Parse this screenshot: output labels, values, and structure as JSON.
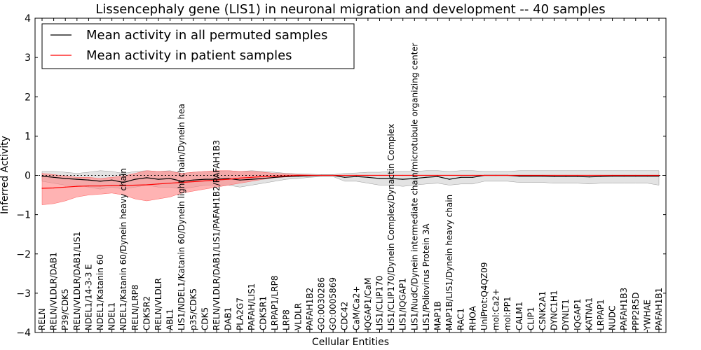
{
  "chart_data": {
    "type": "line",
    "title": "Lissencephaly gene (LIS1) in neuronal migration and development -- 40 samples",
    "xlabel": "Cellular Entities",
    "ylabel": "Inferred Activity",
    "ylim": [
      -4,
      4
    ],
    "yticks": [
      -4,
      -3,
      -2,
      -1,
      0,
      1,
      2,
      3,
      4
    ],
    "ytick_labels": [
      "−4",
      "−3",
      "−2",
      "−1",
      "0",
      "1",
      "2",
      "3",
      "4"
    ],
    "legend_position": "top-left",
    "categories": [
      "RELN",
      "RELN/VLDLR/DAB1",
      "P39/CDK5",
      "RELN/VLDLR/DAB1/LIS1",
      "NDEL1/14-3-3 E",
      "NDEL1/Katanin 60",
      "NDEL1",
      "NDEL1/Katanin 60/Dynein heavy chain",
      "RELN/LRP8",
      "CDK5R2",
      "RELN/VLDLR",
      "ABL1",
      "LIS1/NDEL1/Katanin 60/Dynein light chain/Dynein hea",
      "p35/CDK5",
      "CDK5",
      "RELN/VLDLR/DAB1/LIS1/PAFAH1B2/PAFAH1B3",
      "DAB1",
      "PLA2G7",
      "PAFAH/LIS1",
      "CDK5R1",
      "LRPAP1/LRP8",
      "LRP8",
      "VLDLR",
      "PAFAH1B2",
      "GO:0030286",
      "GO:0005869",
      "CDC42",
      "CaM/Ca2+",
      "IQGAP1/CaM",
      "LIS1/CLIP170",
      "LIS1/CLIP170/Dynein Complex/Dynactin Complex",
      "LIS1/IQGAP1",
      "LIS1/NudC/Dynein intermediate chain/microtubule organizing center",
      "LIS1/Poliovirus Protein 3A",
      "MAP1B",
      "MAP1B/LIS1/Dynein heavy chain",
      "RAC1",
      "RHOA",
      "UniProt:Q4QZ09",
      "mol:Ca2+",
      "mol:PP1",
      "CALM1",
      "CLIP1",
      "CSNK2A1",
      "DYNC1H1",
      "DYNLT1",
      "IQGAP1",
      "KATNA1",
      "LRPAP1",
      "NUDC",
      "PAFAH1B3",
      "PPP2R5D",
      "YWHAE",
      "PAFAH1B1"
    ],
    "series": [
      {
        "name": "Mean activity in all permuted samples",
        "color": "#000000",
        "band_color": "#c8c8c8",
        "values": [
          -0.02,
          -0.05,
          -0.08,
          -0.1,
          -0.12,
          -0.15,
          -0.12,
          -0.18,
          -0.1,
          -0.06,
          -0.1,
          -0.08,
          -0.15,
          -0.12,
          -0.1,
          -0.1,
          -0.08,
          -0.12,
          -0.1,
          -0.08,
          -0.05,
          -0.03,
          -0.02,
          -0.01,
          0.0,
          0.0,
          -0.05,
          -0.03,
          -0.05,
          -0.08,
          -0.08,
          -0.1,
          -0.08,
          -0.05,
          -0.03,
          -0.1,
          -0.05,
          -0.05,
          0.0,
          0.0,
          0.0,
          -0.02,
          -0.02,
          -0.02,
          -0.03,
          -0.03,
          -0.03,
          -0.04,
          -0.03,
          -0.02,
          -0.02,
          -0.02,
          -0.02,
          -0.02
        ],
        "upper": [
          0.1,
          0.1,
          0.08,
          0.05,
          0.08,
          0.12,
          0.1,
          0.05,
          0.1,
          0.12,
          0.1,
          0.12,
          0.05,
          0.08,
          0.1,
          0.1,
          0.12,
          0.1,
          0.12,
          0.1,
          0.08,
          0.05,
          0.04,
          0.03,
          0.02,
          0.02,
          0.05,
          0.06,
          0.08,
          0.08,
          0.1,
          0.1,
          0.1,
          0.12,
          0.12,
          0.1,
          0.12,
          0.12,
          0.1,
          0.1,
          0.1,
          0.12,
          0.12,
          0.12,
          0.12,
          0.12,
          0.12,
          0.12,
          0.12,
          0.12,
          0.12,
          0.12,
          0.12,
          0.12
        ],
        "lower": [
          -0.15,
          -0.2,
          -0.25,
          -0.25,
          -0.3,
          -0.35,
          -0.3,
          -0.35,
          -0.3,
          -0.25,
          -0.3,
          -0.3,
          -0.35,
          -0.3,
          -0.25,
          -0.25,
          -0.25,
          -0.3,
          -0.25,
          -0.2,
          -0.15,
          -0.1,
          -0.08,
          -0.05,
          -0.03,
          -0.03,
          -0.15,
          -0.15,
          -0.2,
          -0.25,
          -0.25,
          -0.28,
          -0.25,
          -0.22,
          -0.2,
          -0.25,
          -0.22,
          -0.22,
          -0.15,
          -0.15,
          -0.15,
          -0.18,
          -0.18,
          -0.18,
          -0.2,
          -0.2,
          -0.2,
          -0.22,
          -0.2,
          -0.2,
          -0.2,
          -0.2,
          -0.2,
          -0.25
        ]
      },
      {
        "name": "Mean activity in patient samples",
        "color": "#ff0000",
        "band_color": "#ff8080",
        "values": [
          -0.33,
          -0.32,
          -0.3,
          -0.28,
          -0.27,
          -0.27,
          -0.26,
          -0.26,
          -0.25,
          -0.24,
          -0.22,
          -0.2,
          -0.18,
          -0.16,
          -0.14,
          -0.12,
          -0.1,
          -0.07,
          -0.05,
          -0.03,
          -0.02,
          -0.01,
          0.0,
          0.0,
          0.0,
          0.0,
          0.0,
          0.0,
          0.0,
          0.0,
          0.0,
          0.0,
          0.0,
          0.0,
          0.0,
          0.0,
          0.0,
          0.0,
          0.0,
          0.0,
          0.0,
          0.0,
          0.0,
          0.0,
          0.0,
          0.0,
          0.0,
          0.0,
          0.0,
          0.0,
          0.0,
          0.0,
          0.0,
          0.0
        ],
        "upper": [
          0.05,
          0.02,
          -0.02,
          -0.05,
          -0.05,
          -0.08,
          -0.05,
          -0.02,
          0.05,
          0.12,
          0.1,
          0.1,
          0.05,
          0.08,
          0.1,
          0.12,
          0.12,
          0.1,
          0.1,
          0.08,
          0.05,
          0.04,
          0.02,
          0.01,
          0.0,
          0.0,
          0.0,
          0.0,
          0.0,
          0.0,
          0.0,
          0.0,
          0.0,
          0.0,
          0.0,
          0.0,
          0.0,
          0.0,
          0.0,
          0.0,
          0.0,
          0.0,
          0.0,
          0.0,
          0.0,
          0.0,
          0.0,
          0.0,
          0.0,
          0.0,
          0.0,
          0.0,
          0.0,
          0.0
        ],
        "lower": [
          -0.75,
          -0.72,
          -0.65,
          -0.55,
          -0.5,
          -0.48,
          -0.45,
          -0.5,
          -0.6,
          -0.65,
          -0.6,
          -0.55,
          -0.45,
          -0.4,
          -0.35,
          -0.3,
          -0.25,
          -0.2,
          -0.15,
          -0.1,
          -0.06,
          -0.04,
          -0.02,
          -0.01,
          0.0,
          0.0,
          0.0,
          0.0,
          0.0,
          0.0,
          0.0,
          0.0,
          0.0,
          0.0,
          0.0,
          0.0,
          0.0,
          0.0,
          0.0,
          0.0,
          0.0,
          0.0,
          0.0,
          0.0,
          0.0,
          0.0,
          0.0,
          0.0,
          0.0,
          0.0,
          0.0,
          0.0,
          0.0,
          0.0
        ]
      }
    ]
  }
}
